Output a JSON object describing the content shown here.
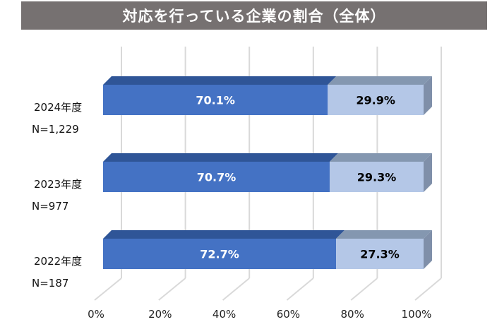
{
  "chart_data": {
    "type": "bar",
    "orientation": "horizontal",
    "stacked": true,
    "style_3d": true,
    "title": "対応を行っている企業の割合（全体）",
    "categories": [
      {
        "year": "2024年度",
        "n": "N=1,229"
      },
      {
        "year": "2023年度",
        "n": "N=977"
      },
      {
        "year": "2022年度",
        "n": "N=187"
      }
    ],
    "series": [
      {
        "values": [
          70.1,
          70.7,
          72.7
        ],
        "labels": [
          "70.1%",
          "70.7%",
          "72.7%"
        ],
        "color": "#4472C4",
        "top_color": "#2F5597",
        "label_color": "#ffffff"
      },
      {
        "values": [
          29.9,
          29.3,
          27.3
        ],
        "labels": [
          "29.9%",
          "29.3%",
          "27.3%"
        ],
        "color": "#B4C7E7",
        "top_color": "#8497B0",
        "side_color": "#7F8FA9",
        "label_color": "#000000"
      }
    ],
    "xlim": [
      0,
      100
    ],
    "xticks": [
      "0%",
      "20%",
      "40%",
      "60%",
      "80%",
      "100%"
    ],
    "grid": true,
    "title_bar_color": "#767171"
  }
}
